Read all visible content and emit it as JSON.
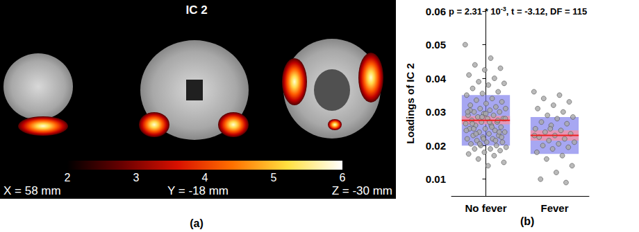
{
  "panel_a": {
    "title": "IC 2",
    "caption": "(a)",
    "slice_labels": [
      "X = 58 mm",
      "Y = -18 mm",
      "Z = -30 mm"
    ],
    "colorbar": {
      "range": [
        2,
        6
      ],
      "ticks": [
        2,
        3,
        4,
        5,
        6
      ]
    }
  },
  "chart_data": {
    "type": "scatter",
    "caption": "(b)",
    "title": {
      "base": "p = 2.31 * 10",
      "exponent": "-3",
      "rest": ", t = -3.12, DF = 115"
    },
    "y_label": "Loadings of IC 2",
    "categories": [
      "No fever",
      "Fever"
    ],
    "ylim": [
      0.005,
      0.06
    ],
    "yticks": [
      0.01,
      0.02,
      0.03,
      0.04,
      0.05,
      0.06
    ],
    "grid": false,
    "color": "#a9a9a9",
    "groups": [
      {
        "category": "No fever",
        "mean": 0.0275,
        "sd_band": [
          0.02,
          0.035
        ],
        "sem_band": [
          0.0263,
          0.0288
        ],
        "values": [
          0.05,
          0.046,
          0.044,
          0.043,
          0.0425,
          0.041,
          0.04,
          0.039,
          0.0385,
          0.038,
          0.037,
          0.036,
          0.0355,
          0.035,
          0.034,
          0.0335,
          0.033,
          0.0325,
          0.032,
          0.0315,
          0.031,
          0.031,
          0.0305,
          0.03,
          0.03,
          0.0295,
          0.029,
          0.029,
          0.0285,
          0.028,
          0.028,
          0.0275,
          0.027,
          0.027,
          0.0265,
          0.026,
          0.026,
          0.0255,
          0.025,
          0.025,
          0.0245,
          0.024,
          0.024,
          0.0235,
          0.023,
          0.023,
          0.0225,
          0.022,
          0.022,
          0.0215,
          0.021,
          0.021,
          0.0205,
          0.02,
          0.02,
          0.0195,
          0.019,
          0.019,
          0.0185,
          0.018,
          0.0175,
          0.017,
          0.016,
          0.015,
          0.014,
          0.0265,
          0.0275,
          0.0285,
          0.0245,
          0.0255,
          0.0235,
          0.0225,
          0.0295,
          0.0305,
          0.0215,
          0.0205,
          0.028,
          0.027,
          0.025,
          0.024,
          0.022,
          0.03
        ]
      },
      {
        "category": "Fever",
        "mean": 0.023,
        "sd_band": [
          0.0175,
          0.0285
        ],
        "sem_band": [
          0.0215,
          0.0245
        ],
        "values": [
          0.036,
          0.035,
          0.034,
          0.033,
          0.032,
          0.031,
          0.03,
          0.029,
          0.0285,
          0.028,
          0.027,
          0.0265,
          0.026,
          0.025,
          0.0245,
          0.024,
          0.0235,
          0.023,
          0.0225,
          0.022,
          0.0215,
          0.021,
          0.0205,
          0.02,
          0.0195,
          0.019,
          0.018,
          0.017,
          0.016,
          0.014,
          0.012,
          0.01,
          0.009,
          0.025,
          0.023
        ]
      }
    ]
  }
}
